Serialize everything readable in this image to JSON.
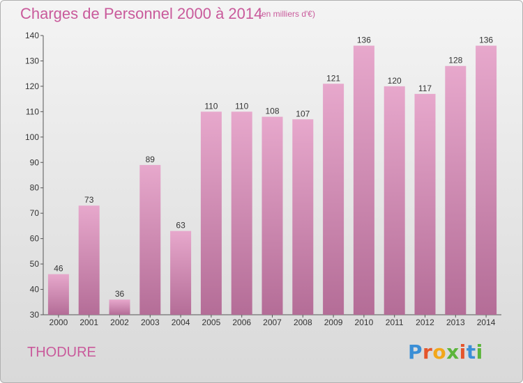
{
  "chart_title": "Charges de Personnel 2000 à 2014",
  "chart_unit": "(en milliers d'€)",
  "commune": "THODURE",
  "logo": {
    "text": "Proxiti",
    "letter_colors": [
      "#3b8fd6",
      "#e5552b",
      "#f2a71b",
      "#5bb53b",
      "#e5552b",
      "#3b8fd6",
      "#5bb53b"
    ]
  },
  "colors": {
    "bar_top": "#e7a8cc",
    "bar_bottom": "#b46d97",
    "accent": "#c95a9b"
  },
  "chart_data": {
    "type": "bar",
    "title": "Charges de Personnel 2000 à 2014",
    "subtitle": "(en milliers d'€)",
    "xlabel": "",
    "ylabel": "",
    "categories": [
      "2000",
      "2001",
      "2002",
      "2003",
      "2004",
      "2005",
      "2006",
      "2007",
      "2008",
      "2009",
      "2010",
      "2011",
      "2012",
      "2013",
      "2014"
    ],
    "values": [
      46,
      73,
      36,
      89,
      63,
      110,
      110,
      108,
      107,
      121,
      136,
      120,
      117,
      128,
      136
    ],
    "ylim": [
      30,
      140
    ],
    "yticks": [
      30,
      40,
      50,
      60,
      70,
      80,
      90,
      100,
      110,
      120,
      130,
      140
    ],
    "grid": false,
    "legend": "none"
  }
}
